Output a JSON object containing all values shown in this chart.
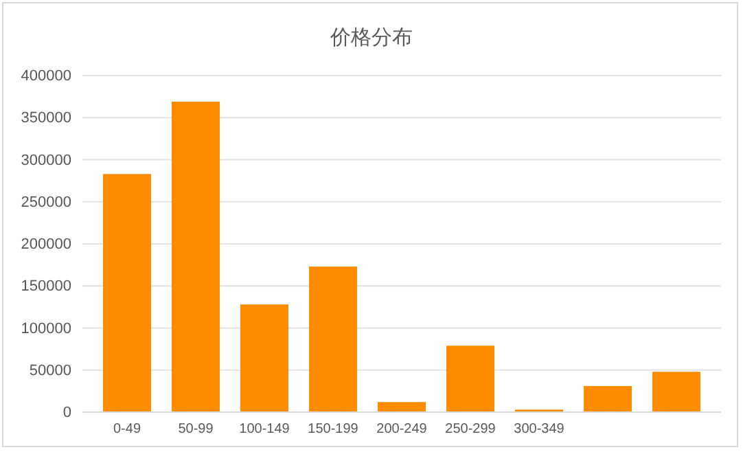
{
  "chart_data": {
    "type": "bar",
    "title": "价格分布",
    "categories": [
      "0-49",
      "50-99",
      "100-149",
      "150-199",
      "200-249",
      "250-299",
      "300-349",
      null,
      null
    ],
    "values": [
      283000,
      369000,
      128000,
      173000,
      12000,
      79000,
      3000,
      31000,
      48000
    ],
    "color": "#ff8c00",
    "ylim": [
      0,
      400000
    ],
    "yticks": [
      0,
      50000,
      100000,
      150000,
      200000,
      250000,
      300000,
      350000,
      400000
    ],
    "grid": "y"
  }
}
